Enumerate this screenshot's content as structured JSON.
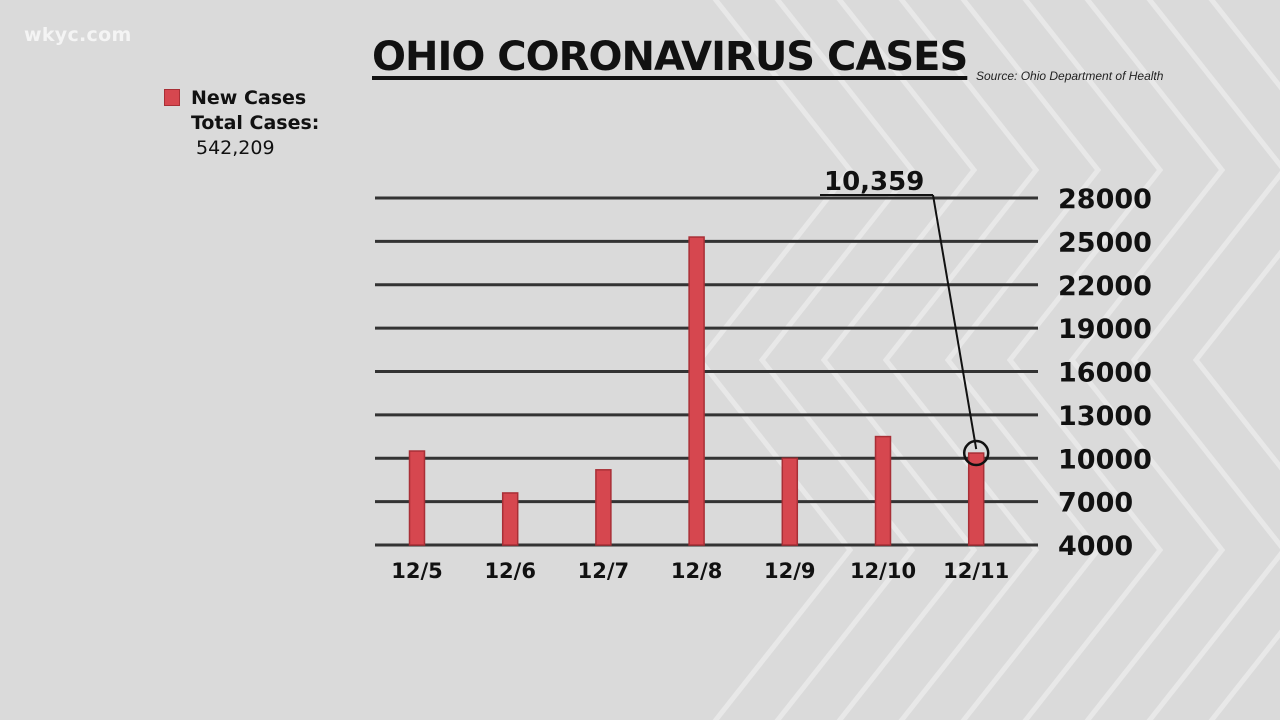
{
  "watermark": "wkyc.com",
  "title": "OHIO CORONAVIRUS CASES",
  "source": "Source: Ohio Department of Health",
  "legend": {
    "series_label": "New Cases",
    "total_label": "Total Cases:",
    "total_value": "542,209"
  },
  "colors": {
    "bar": "#d6474f",
    "bar_edge": "#a82f36",
    "gridline": "#333333",
    "background": "#dadada"
  },
  "chart_data": {
    "type": "bar",
    "title": "OHIO CORONAVIRUS CASES",
    "categories": [
      "12/5",
      "12/6",
      "12/7",
      "12/8",
      "12/9",
      "12/10",
      "12/11"
    ],
    "series": [
      {
        "name": "New Cases",
        "values": [
          10500,
          7600,
          9200,
          25300,
          10000,
          11500,
          10359
        ]
      }
    ],
    "yticks": [
      4000,
      7000,
      10000,
      13000,
      16000,
      19000,
      22000,
      25000,
      28000
    ],
    "ylim": [
      4000,
      28000
    ],
    "xlabel": "",
    "ylabel": "",
    "y_axis_side": "right",
    "grid": true,
    "callout": {
      "category": "12/11",
      "text": "10,359"
    }
  }
}
